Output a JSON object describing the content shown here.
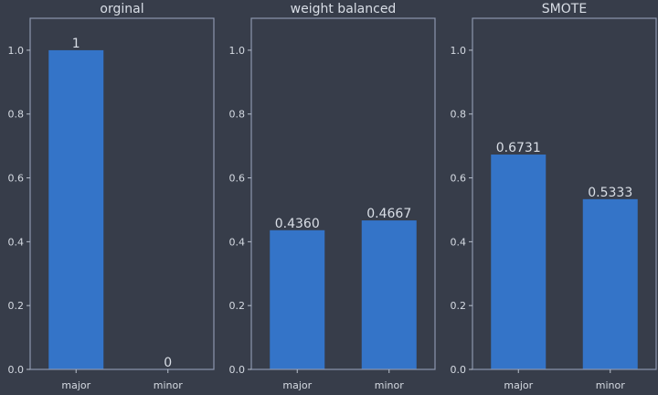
{
  "figure": {
    "background": "#373d4a"
  },
  "chart_data": [
    {
      "type": "bar",
      "title": "orginal",
      "categories": [
        "major",
        "minor"
      ],
      "values": [
        1,
        0
      ],
      "value_labels": [
        "1",
        "0"
      ],
      "ylim": [
        0,
        1.1
      ],
      "yticks": [
        "0.0",
        "0.2",
        "0.4",
        "0.6",
        "0.8",
        "1.0"
      ],
      "grid": false,
      "bar_color": "#3474c8"
    },
    {
      "type": "bar",
      "title": "weight balanced",
      "categories": [
        "major",
        "minor"
      ],
      "values": [
        0.436,
        0.4667
      ],
      "value_labels": [
        "0.4360",
        "0.4667"
      ],
      "ylim": [
        0,
        1.1
      ],
      "yticks": [
        "0.0",
        "0.2",
        "0.4",
        "0.6",
        "0.8",
        "1.0"
      ],
      "grid": false,
      "bar_color": "#3474c8"
    },
    {
      "type": "bar",
      "title": "SMOTE",
      "categories": [
        "major",
        "minor"
      ],
      "values": [
        0.6731,
        0.5333
      ],
      "value_labels": [
        "0.6731",
        "0.5333"
      ],
      "ylim": [
        0,
        1.1
      ],
      "yticks": [
        "0.0",
        "0.2",
        "0.4",
        "0.6",
        "0.8",
        "1.0"
      ],
      "grid": false,
      "bar_color": "#3474c8"
    }
  ]
}
